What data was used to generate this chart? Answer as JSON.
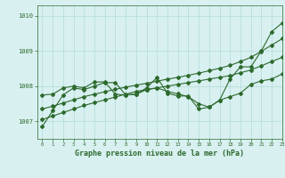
{
  "title": "Graphe pression niveau de la mer (hPa)",
  "bg_color": "#d8f0f0",
  "grid_color": "#b8dede",
  "line_color": "#2d6a2d",
  "xlim": [
    -0.5,
    23
  ],
  "ylim": [
    1006.5,
    1010.3
  ],
  "yticks": [
    1007,
    1008,
    1009,
    1010
  ],
  "xticks": [
    0,
    1,
    2,
    3,
    4,
    5,
    6,
    7,
    8,
    9,
    10,
    11,
    12,
    13,
    14,
    15,
    16,
    17,
    18,
    19,
    20,
    21,
    22,
    23
  ],
  "series1_straight": [
    1007.05,
    1007.15,
    1007.25,
    1007.35,
    1007.45,
    1007.53,
    1007.61,
    1007.69,
    1007.77,
    1007.85,
    1007.9,
    1007.95,
    1008.0,
    1008.05,
    1008.1,
    1008.15,
    1008.2,
    1008.25,
    1008.3,
    1008.38,
    1008.46,
    1008.58,
    1008.7,
    1008.82
  ],
  "series2_straight": [
    1007.35,
    1007.43,
    1007.52,
    1007.61,
    1007.7,
    1007.77,
    1007.84,
    1007.91,
    1007.97,
    1008.03,
    1008.08,
    1008.14,
    1008.2,
    1008.25,
    1008.31,
    1008.37,
    1008.44,
    1008.51,
    1008.59,
    1008.7,
    1008.82,
    1008.99,
    1009.17,
    1009.35
  ],
  "series3_zigzag": [
    1007.75,
    1007.77,
    1007.95,
    1008.0,
    1007.95,
    1008.12,
    1008.12,
    1007.77,
    1007.75,
    1007.77,
    1007.95,
    1008.25,
    1007.8,
    1007.72,
    1007.72,
    1007.35,
    1007.4,
    1007.6,
    1008.2,
    1008.55,
    1008.55,
    1009.0,
    1009.55,
    1009.8
  ],
  "series4_zigzag": [
    1006.85,
    1007.3,
    1007.75,
    1007.95,
    1007.9,
    1008.0,
    1008.1,
    1008.1,
    1007.75,
    1007.77,
    1007.9,
    1007.95,
    1007.85,
    1007.78,
    1007.7,
    1007.5,
    1007.4,
    1007.6,
    1007.7,
    1007.8,
    1008.05,
    1008.15,
    1008.2,
    1008.35
  ]
}
